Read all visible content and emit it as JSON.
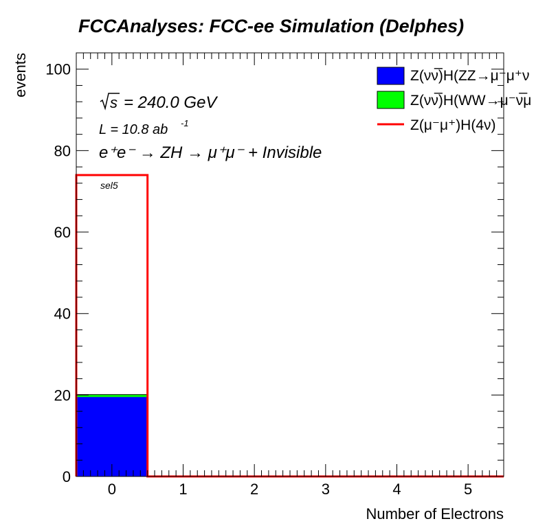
{
  "chart_data": {
    "type": "bar",
    "title": "FCCAnalyses: FCC-ee Simulation (Delphes)",
    "xlabel": "Number of Electrons",
    "ylabel": "events",
    "xlim": [
      -0.5,
      5.5
    ],
    "ylim": [
      0,
      104
    ],
    "x_ticks": [
      "0",
      "1",
      "2",
      "3",
      "4",
      "5"
    ],
    "y_ticks": [
      "0",
      "20",
      "40",
      "60",
      "80",
      "100"
    ],
    "bin_edges": [
      -0.5,
      0.5,
      1.5,
      2.5,
      3.5,
      4.5,
      5.5
    ],
    "stacked": true,
    "series": [
      {
        "name": "Z(νν̅)H(ZZ→μ⁻μ⁺ν",
        "color": "#0000ff",
        "style": "filled",
        "values": [
          19.5,
          0,
          0,
          0,
          0,
          0
        ]
      },
      {
        "name": "Z(νν̅)H(WW→μ⁻ν̅μ",
        "color": "#00ff00",
        "style": "filled",
        "values": [
          0.6,
          0,
          0,
          0,
          0,
          0
        ]
      },
      {
        "name": "Z(μ⁻μ⁺)H(4ν)",
        "color": "#ff0000",
        "style": "line",
        "values": [
          74,
          0,
          0,
          0,
          0,
          0
        ]
      }
    ],
    "legend_position": "top-right",
    "annotations": {
      "sqrt_s": "= 240.0 GeV",
      "luminosity": "L = 10.8 ab",
      "lumi_exp": "-1",
      "process": "e⁺e⁻ → ZH → μ⁺μ⁻ + Invisible",
      "selection": "sel5"
    }
  }
}
